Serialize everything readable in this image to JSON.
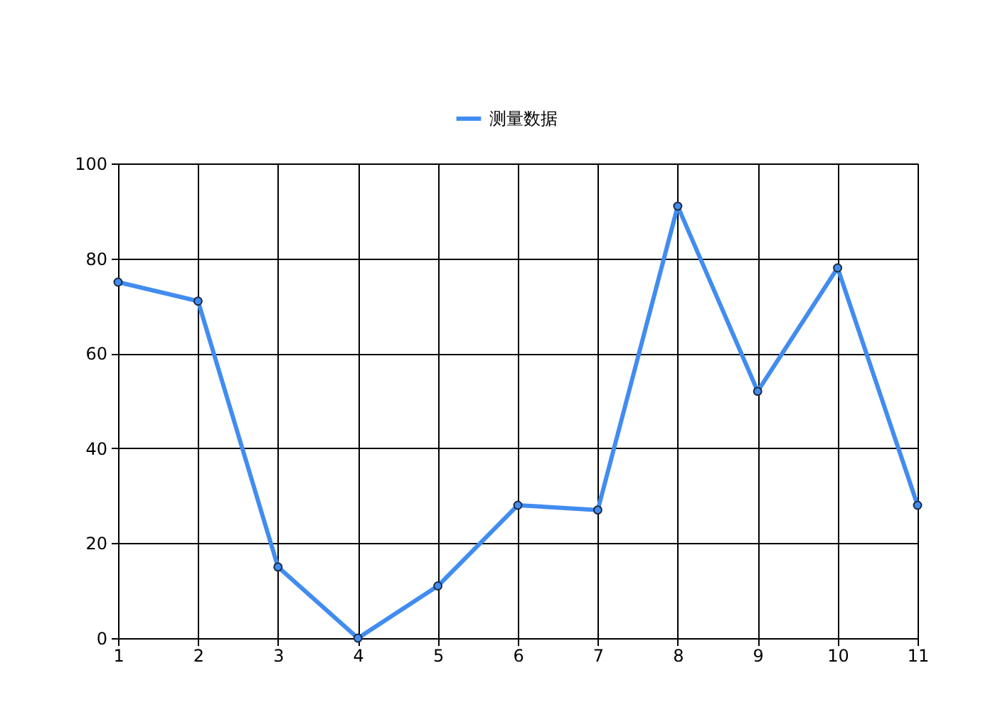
{
  "chart_data": {
    "type": "line",
    "x": [
      1,
      2,
      3,
      4,
      5,
      6,
      7,
      8,
      9,
      10,
      11
    ],
    "series": [
      {
        "name": "测量数据",
        "color": "#418cf0",
        "values": [
          75,
          71,
          15,
          0,
          11,
          28,
          27,
          91,
          52,
          78,
          28
        ]
      }
    ],
    "xlim": [
      1,
      11
    ],
    "xticks": [
      1,
      2,
      3,
      4,
      5,
      6,
      7,
      8,
      9,
      10,
      11
    ],
    "ylim": [
      0,
      100
    ],
    "yticks": [
      0,
      20,
      40,
      60,
      80,
      100
    ],
    "grid": true,
    "legend": "top",
    "marker": "circle",
    "line_style": "solid"
  }
}
